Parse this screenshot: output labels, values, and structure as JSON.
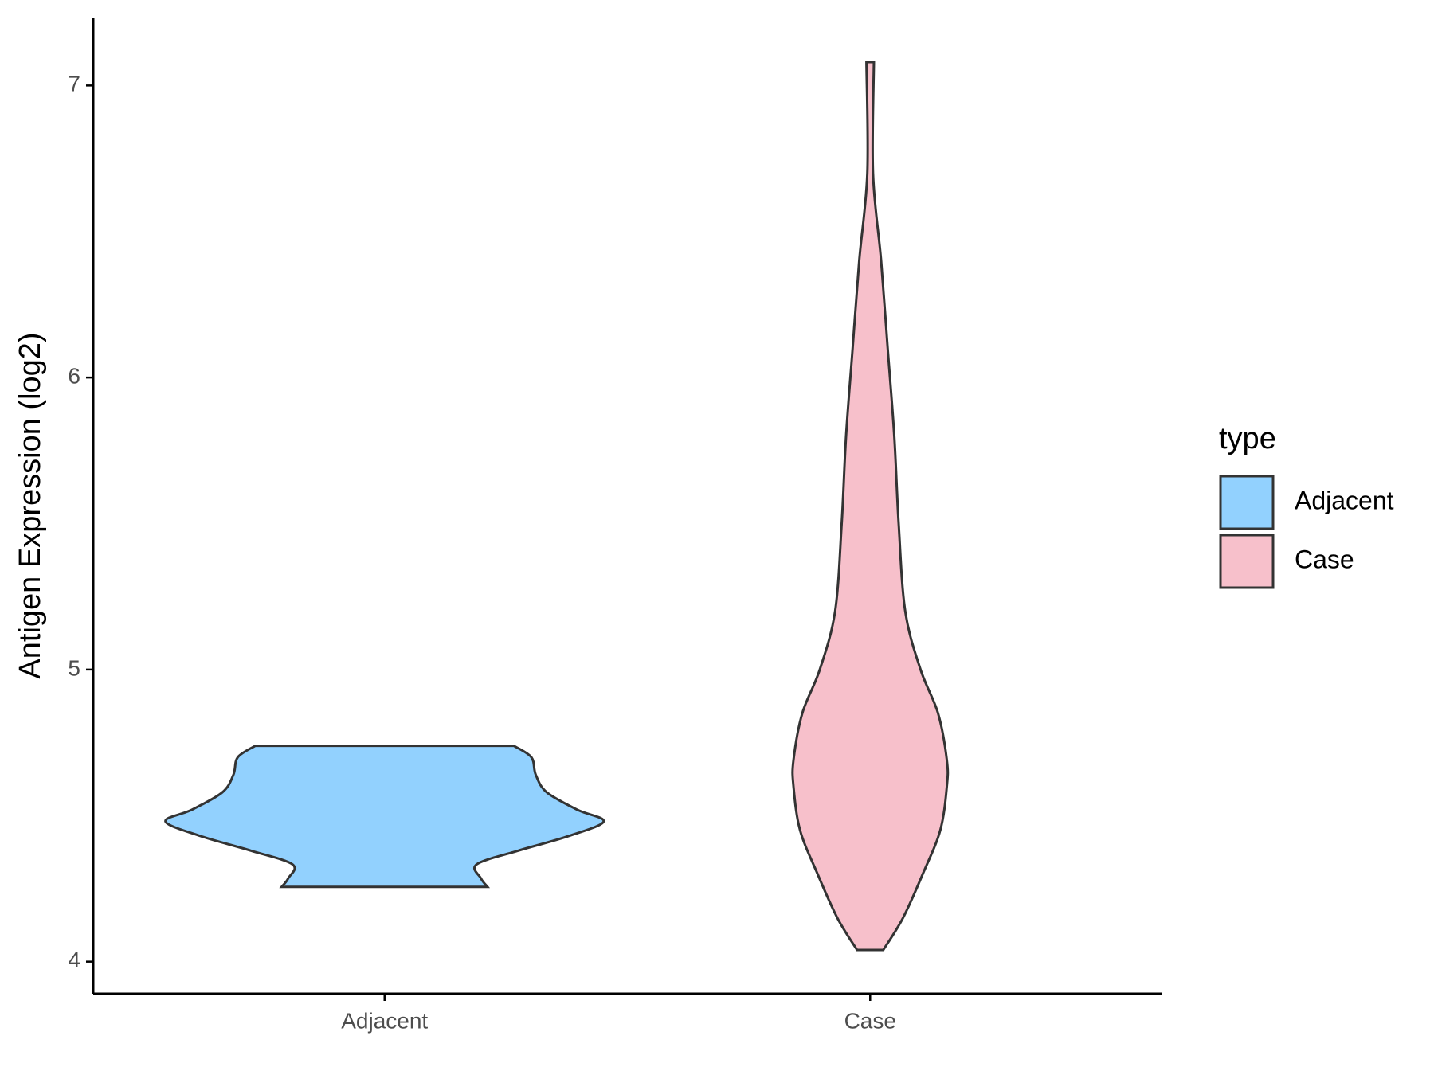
{
  "chart_data": {
    "type": "violin",
    "y_label": "Antigen Expression (log2)",
    "categories": [
      "Adjacent",
      "Case"
    ],
    "ylim": [
      3.89,
      7.23
    ],
    "yticks": [
      4,
      5,
      6,
      7
    ],
    "legend_title": "type",
    "legend_position": "right",
    "series": [
      {
        "name": "Adjacent",
        "color": "#92d1fe",
        "y": [
          4.256,
          4.285,
          4.333,
          4.38,
          4.43,
          4.48,
          4.52,
          4.58,
          4.64,
          4.7,
          4.739
        ],
        "density": [
          0.47,
          0.44,
          0.42,
          0.61,
          0.84,
          1.0,
          0.88,
          0.74,
          0.69,
          0.67,
          0.59
        ]
      },
      {
        "name": "Case",
        "color": "#f7c0cb",
        "y": [
          4.04,
          4.15,
          4.3,
          4.45,
          4.6,
          4.69,
          4.85,
          5.0,
          5.2,
          5.5,
          5.8,
          6.1,
          6.4,
          6.7,
          7.08
        ],
        "density": [
          0.06,
          0.15,
          0.24,
          0.32,
          0.35,
          0.35,
          0.31,
          0.23,
          0.16,
          0.13,
          0.11,
          0.08,
          0.05,
          0.013,
          0.017
        ]
      }
    ]
  }
}
